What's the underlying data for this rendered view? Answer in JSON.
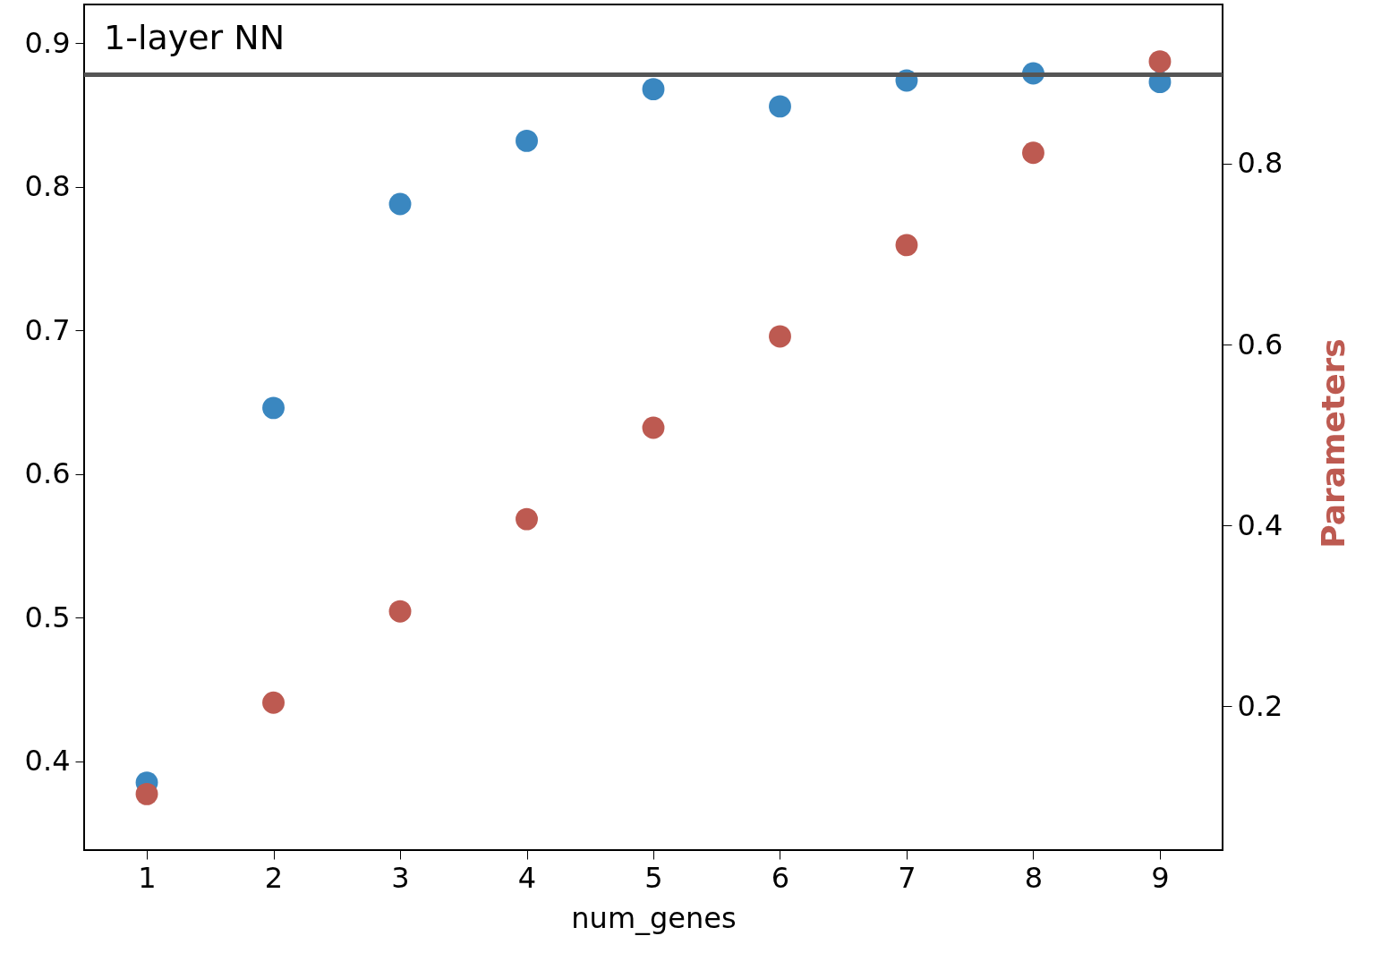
{
  "chart_data": {
    "type": "scatter",
    "xlabel": "num_genes",
    "y2label": "Parameters",
    "annotations": [
      "1-layer NN"
    ],
    "marker": "circle",
    "grid": false,
    "x": [
      1,
      2,
      3,
      4,
      5,
      6,
      7,
      8,
      9
    ],
    "xlim": [
      0.505,
      9.495
    ],
    "xticks": [
      1,
      2,
      3,
      4,
      5,
      6,
      7,
      8,
      9
    ],
    "ylim": [
      0.338,
      0.927
    ],
    "yticks": [
      0.4,
      0.5,
      0.6,
      0.7,
      0.8,
      0.9
    ],
    "y2lim": [
      0.041,
      0.976
    ],
    "y2ticks": [
      0.2,
      0.4,
      0.6,
      0.8
    ],
    "series": [
      {
        "color": "#3a87c0",
        "values": [
          0.385,
          0.646,
          0.788,
          0.832,
          0.868,
          0.856,
          0.874,
          0.879,
          0.873
        ]
      },
      {
        "color": "#bd5a51",
        "axis": "y2",
        "values": [
          0.103,
          0.204,
          0.305,
          0.407,
          0.508,
          0.609,
          0.71,
          0.812,
          0.913
        ]
      }
    ],
    "ref_lines": [
      {
        "axis": "y",
        "value": 0.878,
        "color": "#555555"
      }
    ]
  }
}
